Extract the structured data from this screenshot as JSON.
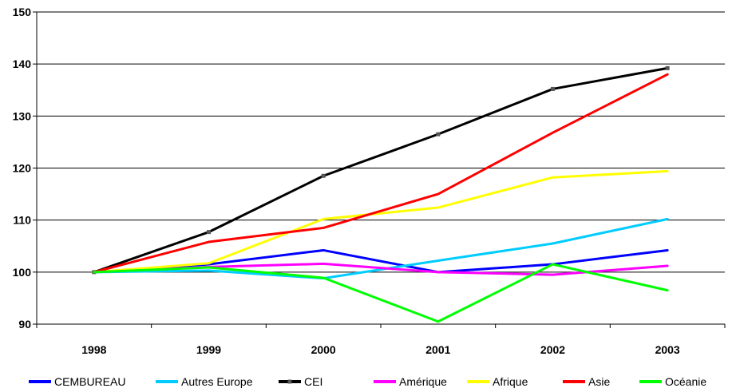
{
  "chart_data": {
    "type": "line",
    "categories": [
      "1998",
      "1999",
      "2000",
      "2001",
      "2002",
      "2003"
    ],
    "y_ticks": [
      "90",
      "100",
      "110",
      "120",
      "130",
      "140",
      "150"
    ],
    "ylim": [
      90,
      150
    ],
    "grid": true,
    "legend_position": "bottom",
    "series": [
      {
        "name": "CEMBUREAU",
        "color": "#0000ff",
        "values": [
          100,
          101.5,
          104.2,
          100,
          101.5,
          104.2
        ]
      },
      {
        "name": "Autres Europe",
        "color": "#00ccff",
        "values": [
          100,
          100.3,
          98.8,
          102.2,
          105.5,
          110.2
        ]
      },
      {
        "name": "CEI",
        "color": "#000000",
        "values": [
          100,
          107.7,
          118.5,
          126.5,
          135.2,
          139.2
        ]
      },
      {
        "name": "Amérique",
        "color": "#ff00ff",
        "values": [
          100,
          101,
          101.6,
          100,
          99.5,
          101.2
        ]
      },
      {
        "name": "Afrique",
        "color": "#ffff00",
        "values": [
          100,
          101.7,
          110.2,
          112.4,
          118.2,
          119.4
        ]
      },
      {
        "name": "Asie",
        "color": "#ff0000",
        "values": [
          100,
          105.8,
          108.5,
          115,
          126.8,
          138
        ]
      },
      {
        "name": "Océanie",
        "color": "#00ff00",
        "values": [
          100,
          100.9,
          98.9,
          90.5,
          101.5,
          96.5
        ]
      }
    ]
  }
}
